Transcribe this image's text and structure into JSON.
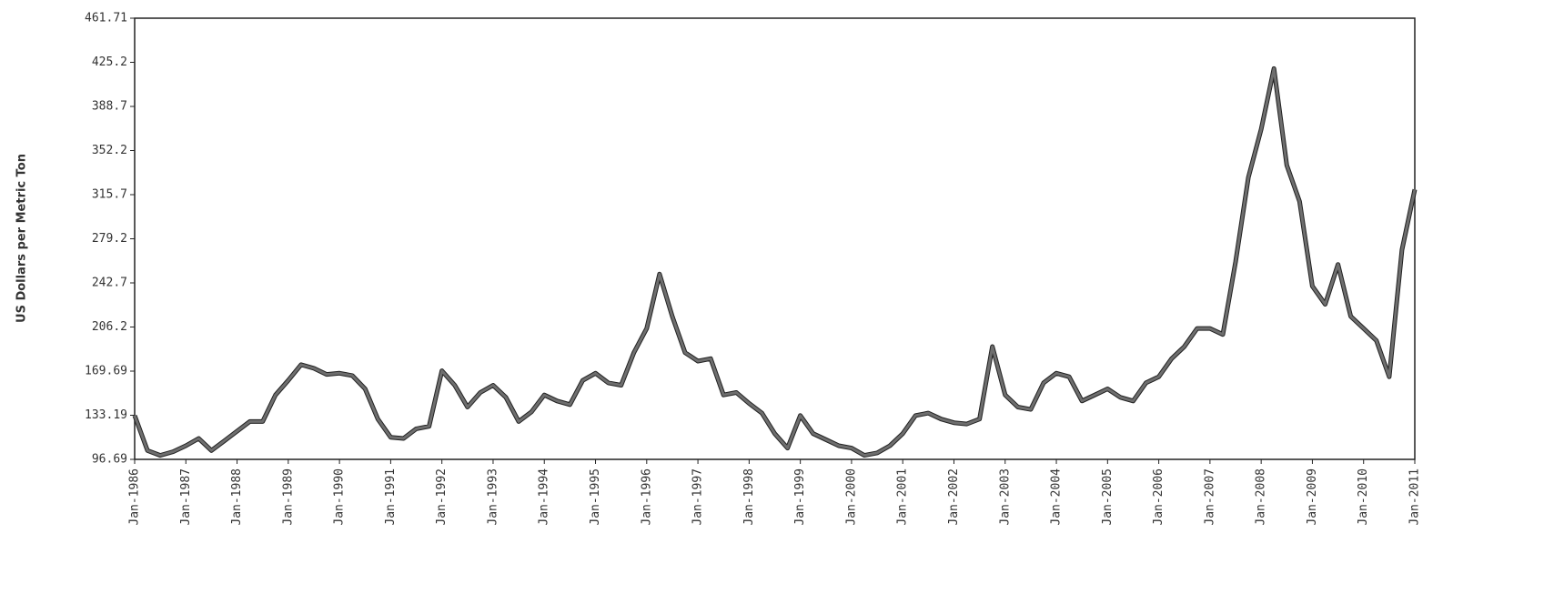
{
  "chart_data": {
    "type": "line",
    "y_label": "US Dollars per Metric Ton",
    "categories": [
      "Jan-1986",
      null,
      null,
      null,
      "Jan-1987",
      null,
      null,
      null,
      "Jan-1988",
      null,
      null,
      null,
      "Jan-1989",
      null,
      null,
      null,
      "Jan-1990",
      null,
      null,
      null,
      "Jan-1991",
      null,
      null,
      null,
      "Jan-1992",
      null,
      null,
      null,
      "Jan-1993",
      null,
      null,
      null,
      "Jan-1994",
      null,
      null,
      null,
      "Jan-1995",
      null,
      null,
      null,
      "Jan-1996",
      null,
      null,
      null,
      "Jan-1997",
      null,
      null,
      null,
      "Jan-1998",
      null,
      null,
      null,
      "Jan-1999",
      null,
      null,
      null,
      "Jan-2000",
      null,
      null,
      null,
      "Jan-2001",
      null,
      null,
      null,
      "Jan-2002",
      null,
      null,
      null,
      "Jan-2003",
      null,
      null,
      null,
      "Jan-2004",
      null,
      null,
      null,
      "Jan-2005",
      null,
      null,
      null,
      "Jan-2006",
      null,
      null,
      null,
      "Jan-2007",
      null,
      null,
      null,
      "Jan-2008",
      null,
      null,
      null,
      "Jan-2009",
      null,
      null,
      null,
      "Jan-2010",
      null,
      null,
      null,
      "Jan-2011"
    ],
    "values": [
      133,
      104,
      100,
      103,
      108,
      114,
      104,
      112,
      120,
      128,
      128,
      150,
      162,
      175,
      172,
      167,
      168,
      166,
      155,
      130,
      115,
      114,
      122,
      124,
      170,
      158,
      140,
      152,
      158,
      148,
      128,
      136,
      150,
      145,
      142,
      162,
      168,
      160,
      158,
      185,
      205,
      250,
      215,
      185,
      178,
      180,
      150,
      152,
      143,
      135,
      118,
      106,
      133,
      118,
      113,
      108,
      106,
      100,
      102,
      108,
      118,
      133,
      135,
      130,
      127,
      126,
      130,
      190,
      150,
      140,
      138,
      160,
      168,
      165,
      145,
      150,
      155,
      148,
      145,
      160,
      165,
      180,
      190,
      205,
      205,
      200,
      260,
      330,
      370,
      420,
      340,
      310,
      240,
      225,
      258,
      215,
      205,
      195,
      165,
      270,
      320
    ],
    "color": "#6e6e6e",
    "ylim": [
      96.69,
      461.71
    ],
    "yticks": [
      96.69,
      133.19,
      169.69,
      206.2,
      242.7,
      279.2,
      315.7,
      352.2,
      388.7,
      425.2,
      461.71
    ]
  }
}
